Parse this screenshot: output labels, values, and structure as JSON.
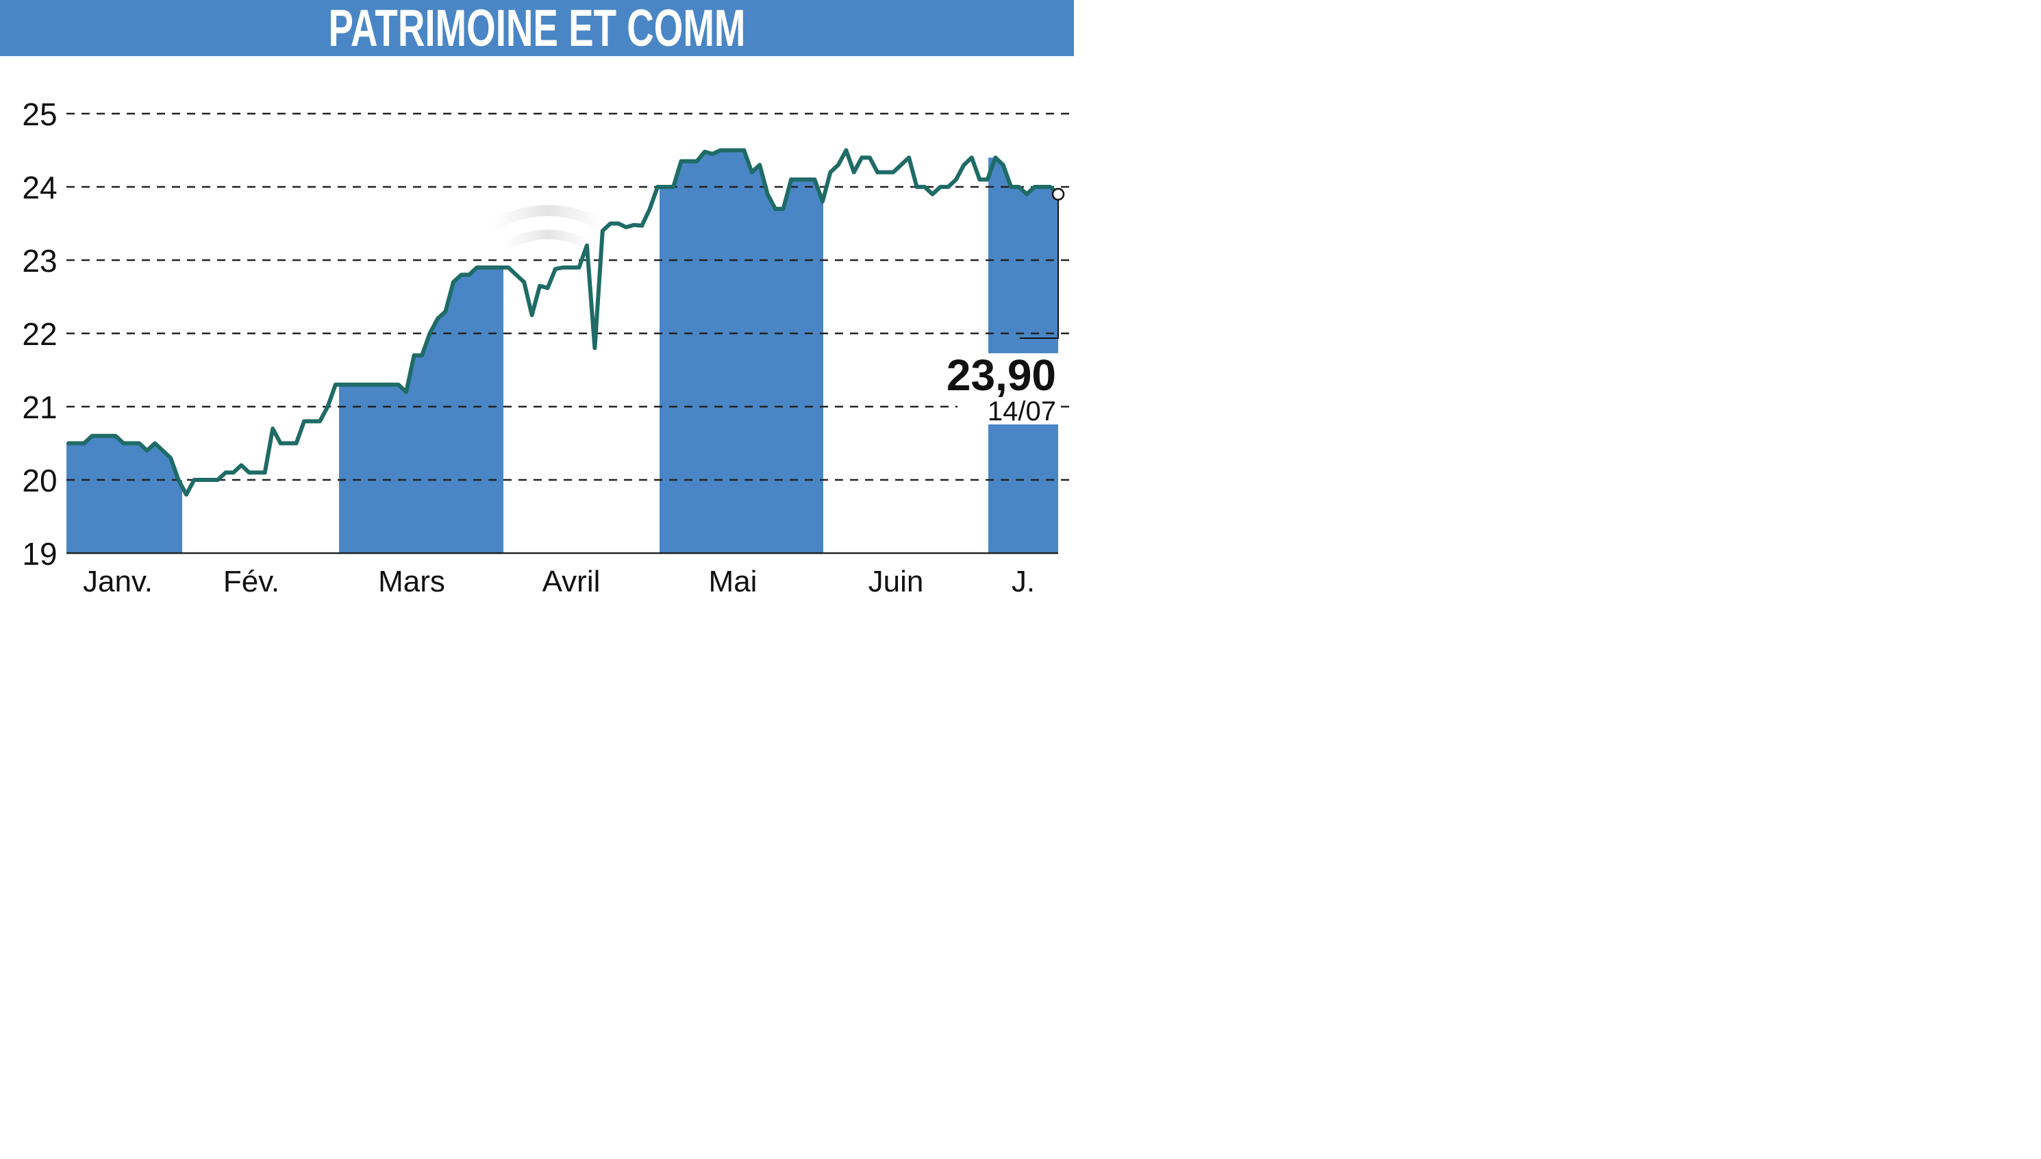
{
  "chart_data": {
    "type": "line",
    "title": "PATRIMOINE ET COMM",
    "xlabel": "",
    "ylabel": "",
    "ylim": [
      19,
      25
    ],
    "yticks": [
      "19",
      "20",
      "21",
      "22",
      "23",
      "24",
      "25"
    ],
    "grid": "horizontal dashed",
    "months": [
      "Janv.",
      "Fév.",
      "Mars",
      "Avril",
      "Mai",
      "Juin",
      "J."
    ],
    "month_shading": [
      true,
      false,
      true,
      false,
      true,
      false,
      true
    ],
    "series": [
      {
        "values": [
          20.5,
          20.5,
          20.5,
          20.6,
          20.6,
          20.6,
          20.6,
          20.5,
          20.5,
          20.5,
          20.4,
          20.5,
          20.4,
          20.3,
          20.0,
          19.8,
          20.0,
          20.0,
          20.0,
          20.0,
          20.1,
          20.1,
          20.2,
          20.1,
          20.1,
          20.1,
          20.7,
          20.5,
          20.5,
          20.5,
          20.8,
          20.8,
          20.8,
          21.0,
          21.3,
          21.3,
          21.3,
          21.3,
          21.3,
          21.3,
          21.3,
          21.3,
          21.3,
          21.2,
          21.7,
          21.7,
          22.0,
          22.2,
          22.3,
          22.7,
          22.8,
          22.8,
          22.9,
          22.9,
          22.9,
          22.9,
          22.9,
          22.8,
          22.7,
          22.25,
          22.65,
          22.62,
          22.88,
          22.9,
          22.9,
          22.9,
          23.2,
          21.8,
          23.4,
          23.5,
          23.5,
          23.45,
          23.48,
          23.47,
          23.7,
          24.0,
          24.0,
          24.0,
          24.35,
          24.35,
          24.35,
          24.48,
          24.45,
          24.5,
          24.5,
          24.5,
          24.5,
          24.2,
          24.3,
          23.9,
          23.7,
          23.7,
          24.1,
          24.1,
          24.1,
          24.1,
          23.8,
          24.2,
          24.3,
          24.5,
          24.2,
          24.4,
          24.4,
          24.2,
          24.2,
          24.2,
          24.3,
          24.4,
          24.0,
          24.0,
          23.9,
          24.0,
          24.0,
          24.1,
          24.3,
          24.4,
          24.1,
          24.1,
          24.4,
          24.3,
          24.0,
          24.0,
          23.9,
          24.0,
          24.0,
          24.0,
          23.9
        ]
      }
    ],
    "last_value": "23,90",
    "last_date": "14/07"
  },
  "colors": {
    "title_bar": "#4a86c5",
    "month_band": "#4a86c5",
    "line": "#1f6b66",
    "grid": "#222222",
    "text": "#111111"
  }
}
